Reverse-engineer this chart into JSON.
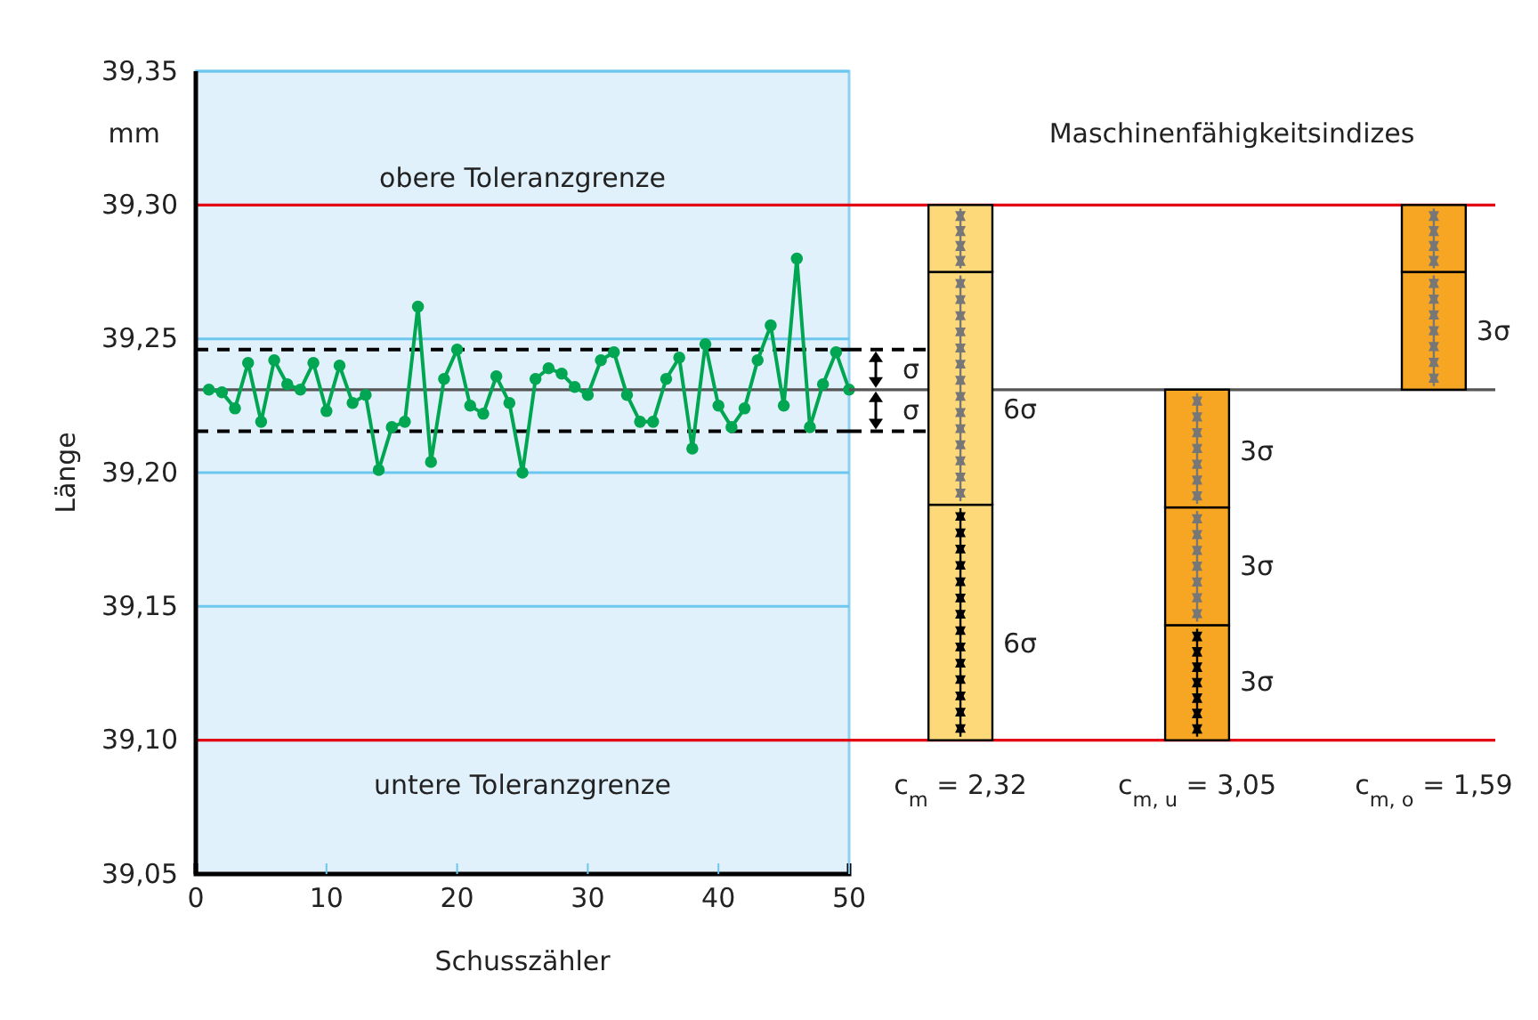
{
  "chart_data": [
    {
      "type": "line",
      "xlabel": "Schusszähler",
      "ylabel": "Länge",
      "annotations": [
        "mm",
        "σ",
        "σ"
      ],
      "xlim": [
        0,
        50
      ],
      "xticks": [
        0,
        10,
        20,
        30,
        40,
        50
      ],
      "ylim": [
        39.05,
        39.35
      ],
      "yticks": [
        {
          "value": 39.05,
          "label": "39,05"
        },
        {
          "value": 39.1,
          "label": "39,10"
        },
        {
          "value": 39.15,
          "label": "39,15"
        },
        {
          "value": 39.2,
          "label": "39,20"
        },
        {
          "value": 39.25,
          "label": "39,25"
        },
        {
          "value": 39.3,
          "label": "39,30"
        },
        {
          "value": 39.35,
          "label": "39,35"
        }
      ],
      "grid": "y",
      "marker": "circle",
      "line_style": "solid",
      "ref_lines": [
        {
          "axis": "y",
          "value": 39.3,
          "label": "obere Toleranzgrenze",
          "color": "#e30613"
        },
        {
          "axis": "y",
          "value": 39.1,
          "label": "untere Toleranzgrenze",
          "color": "#e30613"
        },
        {
          "axis": "y",
          "value": 39.231,
          "color": "#555555"
        },
        {
          "axis": "y",
          "value": 39.246,
          "color": "#000000",
          "line_style": "dashed"
        },
        {
          "axis": "y",
          "value": 39.2155,
          "color": "#000000",
          "line_style": "dashed"
        }
      ],
      "series": [
        {
          "color": "#00a651",
          "x": [
            1,
            2,
            3,
            4,
            5,
            6,
            7,
            8,
            9,
            10,
            11,
            12,
            13,
            14,
            15,
            16,
            17,
            18,
            19,
            20,
            21,
            22,
            23,
            24,
            25,
            26,
            27,
            28,
            29,
            30,
            31,
            32,
            33,
            34,
            35,
            36,
            37,
            38,
            39,
            40,
            41,
            42,
            43,
            44,
            45,
            46,
            47,
            48,
            49,
            50
          ],
          "values": [
            39.231,
            39.23,
            39.224,
            39.241,
            39.219,
            39.242,
            39.233,
            39.231,
            39.241,
            39.223,
            39.24,
            39.226,
            39.229,
            39.201,
            39.217,
            39.219,
            39.262,
            39.204,
            39.235,
            39.246,
            39.225,
            39.222,
            39.236,
            39.226,
            39.2,
            39.235,
            39.239,
            39.237,
            39.232,
            39.229,
            39.242,
            39.245,
            39.229,
            39.219,
            39.219,
            39.235,
            39.243,
            39.209,
            39.248,
            39.225,
            39.217,
            39.224,
            39.242,
            39.255,
            39.225,
            39.28,
            39.217,
            39.233,
            39.245,
            39.231
          ]
        }
      ]
    },
    {
      "type": "bar",
      "title": "Maschinenfähigkeitsindizes",
      "tick_labels": "x",
      "categories": [
        "c$_{m}$ = 2,32",
        "c$_{m, u}$ = 3,05",
        "c$_{m, o}$ = 1,59"
      ],
      "ylim": [
        39.05,
        39.35
      ],
      "series": [
        {
          "colors": [
            "#fdd97a",
            "#f6a623",
            "#f6a623"
          ],
          "base": [
            39.1,
            39.1,
            39.231
          ],
          "values": [
            0.088,
            0.043,
            0.044
          ]
        },
        {
          "colors": [
            "#fdd97a",
            "#f6a623",
            "#f6a623"
          ],
          "base": [
            39.188,
            39.143,
            39.275
          ],
          "values": [
            0.087,
            0.044,
            0.025
          ]
        },
        {
          "colors": [
            "#fdd97a",
            "#f6a623",
            "#f6a623"
          ],
          "base": [
            39.275,
            39.187,
            null
          ],
          "values": [
            0.025,
            0.044,
            null
          ]
        }
      ],
      "ref_lines": [
        {
          "axis": "y",
          "value": 39.3,
          "color": "#e30613"
        },
        {
          "axis": "y",
          "value": 39.1,
          "color": "#e30613"
        },
        {
          "axis": "y",
          "value": 39.231,
          "color": "#555555"
        }
      ],
      "annotations": [
        "6σ",
        "6σ",
        {
          "text": "3σ",
          "x": "c$_{m, u}$ = 3,05",
          "y": 39.122
        },
        {
          "text": "3σ",
          "x": "c$_{m, u}$ = 3,05",
          "y": 39.165
        },
        {
          "text": "3σ",
          "x": "c$_{m, u}$ = 3,05",
          "y": 39.208
        },
        {
          "text": "3σ",
          "x": "c$_{m, o}$ = 1,59",
          "y": 39.253
        }
      ]
    }
  ]
}
